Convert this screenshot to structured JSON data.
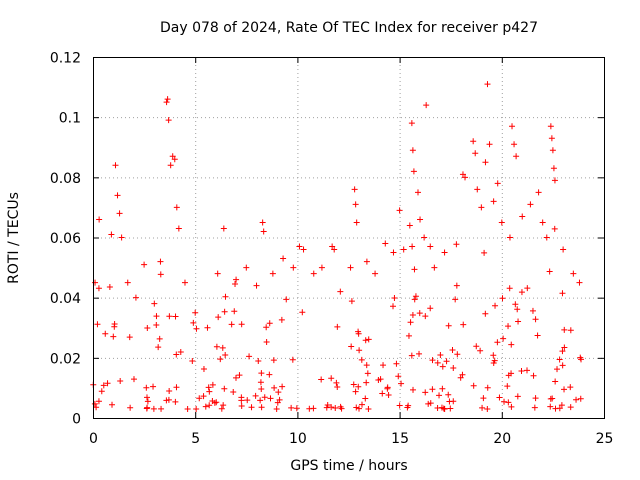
{
  "chart_data": {
    "type": "scatter",
    "title": "Day 078 of 2024, Rate Of TEC Index for receiver p427",
    "xlabel": "GPS time / hours",
    "ylabel": "ROTI / TECUs",
    "xlim": [
      0,
      25
    ],
    "ylim": [
      0,
      0.12
    ],
    "x_ticks": [
      "0",
      "5",
      "10",
      "15",
      "20",
      "25"
    ],
    "y_ticks": [
      "0",
      "0.02",
      "0.04",
      "0.06",
      "0.08",
      "0.1",
      "0.12"
    ],
    "grid": true,
    "marker": "+",
    "color": "#ff0000",
    "series": [
      {
        "name": "ROTI",
        "points": [
          [
            0.1,
            0.045
          ],
          [
            0.3,
            0.066
          ],
          [
            0.6,
            0.028
          ],
          [
            0.9,
            0.061
          ],
          [
            1.1,
            0.084
          ],
          [
            1.2,
            0.074
          ],
          [
            1.3,
            0.068
          ],
          [
            1.4,
            0.06
          ],
          [
            1.7,
            0.045
          ],
          [
            2.1,
            0.04
          ],
          [
            2.5,
            0.051
          ],
          [
            3.0,
            0.038
          ],
          [
            3.3,
            0.052
          ],
          [
            3.6,
            0.105
          ],
          [
            3.65,
            0.106
          ],
          [
            3.7,
            0.099
          ],
          [
            3.8,
            0.084
          ],
          [
            3.9,
            0.087
          ],
          [
            4.0,
            0.086
          ],
          [
            4.1,
            0.07
          ],
          [
            4.2,
            0.063
          ],
          [
            4.5,
            0.045
          ],
          [
            5.0,
            0.035
          ],
          [
            5.6,
            0.03
          ],
          [
            6.1,
            0.048
          ],
          [
            6.4,
            0.063
          ],
          [
            7.0,
            0.046
          ],
          [
            7.5,
            0.05
          ],
          [
            8.0,
            0.044
          ],
          [
            8.3,
            0.065
          ],
          [
            8.35,
            0.062
          ],
          [
            8.8,
            0.048
          ],
          [
            9.3,
            0.053
          ],
          [
            9.8,
            0.05
          ],
          [
            10.1,
            0.057
          ],
          [
            10.3,
            0.056
          ],
          [
            10.8,
            0.048
          ],
          [
            11.2,
            0.05
          ],
          [
            11.7,
            0.057
          ],
          [
            11.8,
            0.056
          ],
          [
            12.1,
            0.042
          ],
          [
            12.6,
            0.05
          ],
          [
            12.8,
            0.076
          ],
          [
            12.85,
            0.071
          ],
          [
            12.9,
            0.065
          ],
          [
            13.4,
            0.052
          ],
          [
            13.8,
            0.048
          ],
          [
            14.3,
            0.058
          ],
          [
            14.7,
            0.055
          ],
          [
            15.0,
            0.069
          ],
          [
            15.2,
            0.056
          ],
          [
            15.5,
            0.064
          ],
          [
            15.6,
            0.098
          ],
          [
            15.65,
            0.089
          ],
          [
            15.7,
            0.082
          ],
          [
            15.9,
            0.075
          ],
          [
            16.0,
            0.066
          ],
          [
            16.2,
            0.06
          ],
          [
            16.3,
            0.104
          ],
          [
            16.5,
            0.057
          ],
          [
            16.7,
            0.05
          ],
          [
            17.2,
            0.055
          ],
          [
            17.8,
            0.044
          ],
          [
            18.1,
            0.081
          ],
          [
            18.2,
            0.08
          ],
          [
            18.6,
            0.092
          ],
          [
            18.7,
            0.088
          ],
          [
            18.8,
            0.076
          ],
          [
            19.0,
            0.07
          ],
          [
            19.2,
            0.085
          ],
          [
            19.3,
            0.111
          ],
          [
            19.4,
            0.091
          ],
          [
            19.6,
            0.072
          ],
          [
            19.8,
            0.078
          ],
          [
            20.0,
            0.065
          ],
          [
            20.4,
            0.06
          ],
          [
            20.5,
            0.097
          ],
          [
            20.6,
            0.091
          ],
          [
            20.7,
            0.087
          ],
          [
            21.0,
            0.067
          ],
          [
            21.4,
            0.071
          ],
          [
            21.8,
            0.075
          ],
          [
            22.0,
            0.065
          ],
          [
            22.2,
            0.06
          ],
          [
            22.4,
            0.097
          ],
          [
            22.45,
            0.093
          ],
          [
            22.5,
            0.089
          ],
          [
            22.55,
            0.083
          ],
          [
            22.6,
            0.079
          ],
          [
            23.0,
            0.056
          ],
          [
            23.5,
            0.048
          ],
          [
            23.8,
            0.045
          ]
        ]
      }
    ]
  }
}
